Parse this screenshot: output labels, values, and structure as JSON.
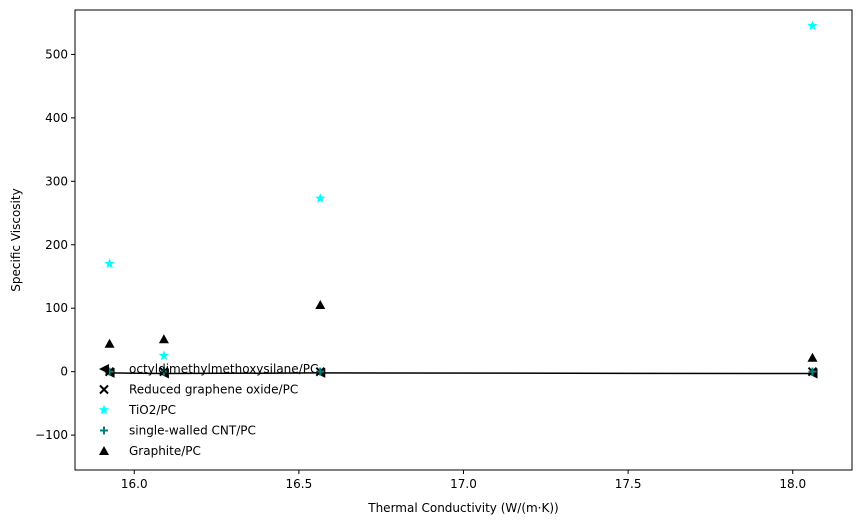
{
  "chart_data": {
    "type": "scatter",
    "xlabel": "Thermal Conductivity (W/(m·K))",
    "ylabel": "Specific Viscosity",
    "xlim": [
      15.82,
      18.18
    ],
    "ylim": [
      -155,
      570
    ],
    "xticks": [
      16.0,
      16.5,
      17.0,
      17.5,
      18.0
    ],
    "xtick_labels": [
      "16.0",
      "16.5",
      "17.0",
      "17.5",
      "18.0"
    ],
    "yticks": [
      -100,
      0,
      100,
      200,
      300,
      400,
      500
    ],
    "ytick_labels": [
      "−100",
      "0",
      "100",
      "200",
      "300",
      "400",
      "500"
    ],
    "grid": false,
    "legend_position": "lower-left",
    "x": [
      15.925,
      16.09,
      16.565,
      18.06
    ],
    "series": [
      {
        "name": "octyldimethylmethoxysilane/PC",
        "marker": "triangle-left",
        "color": "#000000",
        "values": [
          -2,
          -3,
          -2,
          -3
        ],
        "connected": true
      },
      {
        "name": "Reduced graphene oxide/PC",
        "marker": "x",
        "color": "#000000",
        "values": [
          0,
          0,
          0,
          0
        ],
        "connected": false
      },
      {
        "name": "TiO2/PC",
        "marker": "star",
        "color": "#00ffff",
        "values": [
          170,
          25,
          273,
          545
        ],
        "connected": false
      },
      {
        "name": "single-walled CNT/PC",
        "marker": "plus",
        "color": "#008080",
        "values": [
          0,
          0,
          0,
          0
        ],
        "connected": false
      },
      {
        "name": "Graphite/PC",
        "marker": "triangle-up",
        "color": "#000000",
        "values": [
          44,
          51,
          105,
          22
        ],
        "connected": false
      }
    ]
  }
}
